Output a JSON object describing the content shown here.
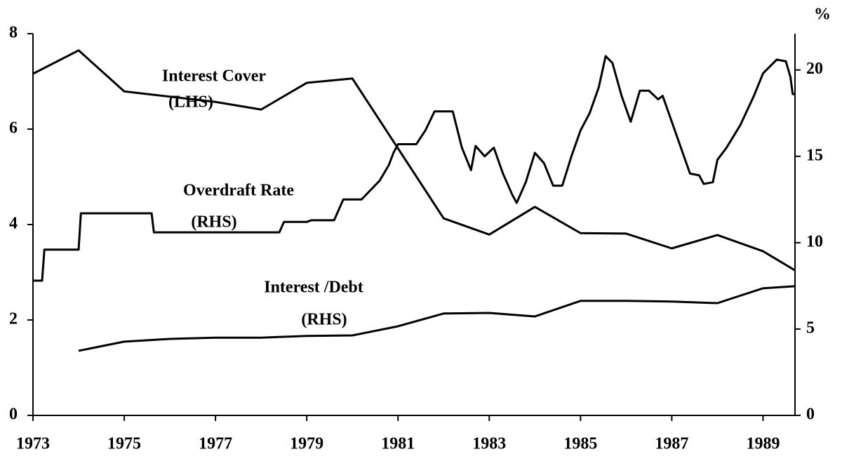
{
  "chart_data": {
    "type": "line",
    "y2label": "%",
    "annotations": [
      "Interest Cover",
      "(LHS)",
      "Overdraft Rate",
      "(RHS)",
      "Interest /Debt",
      "(RHS)"
    ],
    "xlim": [
      1973,
      1989.7
    ],
    "xticks": [
      1973,
      1975,
      1977,
      1979,
      1981,
      1983,
      1985,
      1987,
      1989
    ],
    "ylim": [
      0,
      8
    ],
    "yticks": [
      0,
      2,
      4,
      6,
      8
    ],
    "y2lim": [
      0,
      22.1
    ],
    "y2ticks": [
      0,
      5,
      10,
      15,
      20
    ],
    "series": [
      {
        "name": "Interest Cover",
        "color": "#000000",
        "x": [
          1973,
          1974,
          1975,
          1977,
          1978,
          1979,
          1980,
          1982,
          1983,
          1984,
          1985,
          1986,
          1987,
          1988,
          1989,
          1989.7
        ],
        "values": [
          7.16,
          7.65,
          6.79,
          6.57,
          6.41,
          6.97,
          7.06,
          4.13,
          3.79,
          4.37,
          3.82,
          3.81,
          3.5,
          3.78,
          3.44,
          3.04
        ]
      },
      {
        "name": "Interest /Debt",
        "color": "#000000",
        "axis": "y2",
        "x": [
          1974,
          1975,
          1976,
          1977,
          1978,
          1979,
          1980,
          1981,
          1982,
          1983,
          1984,
          1985,
          1986,
          1987,
          1988,
          1989,
          1989.7
        ],
        "values": [
          3.74,
          4.27,
          4.43,
          4.5,
          4.5,
          4.6,
          4.63,
          5.16,
          5.9,
          5.93,
          5.73,
          6.63,
          6.63,
          6.59,
          6.5,
          7.36,
          7.48
        ]
      },
      {
        "name": "Overdraft Rate",
        "color": "#000000",
        "axis": "y2",
        "x": [
          1973,
          1973.2,
          1973.25,
          1974,
          1974.05,
          1975.6,
          1975.65,
          1978.4,
          1978.5,
          1979,
          1979.1,
          1979.6,
          1979.8,
          1980.2,
          1980.6,
          1980.8,
          1980.9,
          1981,
          1981.4,
          1981.6,
          1981.8,
          1982.2,
          1982.4,
          1982.6,
          1982.7,
          1982.9,
          1983.1,
          1983.3,
          1983.5,
          1983.6,
          1983.8,
          1984,
          1984.2,
          1984.4,
          1984.6,
          1984.8,
          1985,
          1985.2,
          1985.4,
          1985.55,
          1985.7,
          1985.9,
          1986.1,
          1986.3,
          1986.5,
          1986.7,
          1986.8,
          1987,
          1987.2,
          1987.4,
          1987.6,
          1987.7,
          1987.9,
          1988,
          1988.2,
          1988.5,
          1988.8,
          1989,
          1989.3,
          1989.5,
          1989.6,
          1989.65,
          1989.7
        ],
        "values": [
          7.8,
          7.8,
          9.6,
          9.6,
          11.7,
          11.7,
          10.6,
          10.6,
          11.2,
          11.2,
          11.3,
          11.3,
          12.5,
          12.5,
          13.6,
          14.5,
          15.2,
          15.7,
          15.7,
          16.5,
          17.6,
          17.6,
          15.5,
          14.2,
          15.6,
          15.0,
          15.5,
          14.0,
          12.8,
          12.3,
          13.5,
          15.2,
          14.6,
          13.3,
          13.3,
          15.0,
          16.5,
          17.5,
          19.0,
          20.8,
          20.4,
          18.5,
          17.0,
          18.8,
          18.8,
          18.3,
          18.5,
          17.0,
          15.5,
          14.0,
          13.9,
          13.4,
          13.5,
          14.8,
          15.5,
          16.8,
          18.5,
          19.8,
          20.6,
          20.5,
          19.6,
          18.6,
          18.6
        ]
      }
    ]
  }
}
